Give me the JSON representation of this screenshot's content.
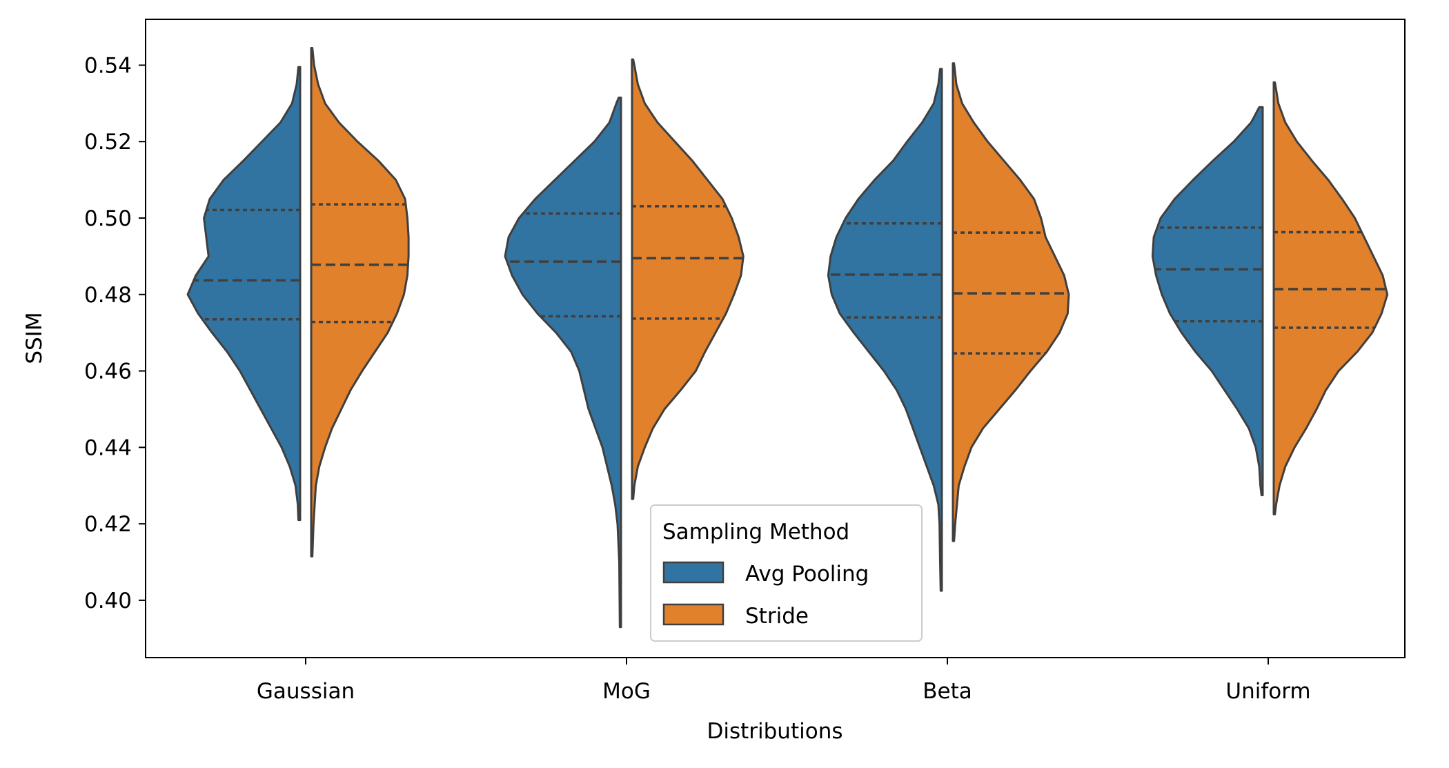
{
  "chart_data": {
    "type": "violin",
    "split": true,
    "xlabel": "Distributions",
    "ylabel": "SSIM",
    "categories": [
      "Gaussian",
      "MoG",
      "Beta",
      "Uniform"
    ],
    "ylim": [
      0.385,
      0.552
    ],
    "yticks": [
      0.4,
      0.42,
      0.44,
      0.46,
      0.48,
      0.5,
      0.52,
      0.54
    ],
    "ytick_labels": [
      "0.40",
      "0.42",
      "0.44",
      "0.46",
      "0.48",
      "0.50",
      "0.52",
      "0.54"
    ],
    "grid": false,
    "legend": {
      "title": "Sampling Method",
      "placement": "lower-center",
      "entries": [
        "Avg Pooling",
        "Stride"
      ]
    },
    "series": [
      {
        "name": "Avg Pooling",
        "color": "#3274a1",
        "side": "left",
        "violins": [
          {
            "min": 0.421,
            "max": 0.5395,
            "q1": 0.4735,
            "median": 0.4837,
            "q3": 0.5021,
            "profile": [
              [
                0.421,
                0.015
              ],
              [
                0.425,
                0.02
              ],
              [
                0.43,
                0.04
              ],
              [
                0.435,
                0.09
              ],
              [
                0.44,
                0.16
              ],
              [
                0.445,
                0.25
              ],
              [
                0.45,
                0.34
              ],
              [
                0.455,
                0.43
              ],
              [
                0.46,
                0.52
              ],
              [
                0.465,
                0.63
              ],
              [
                0.47,
                0.76
              ],
              [
                0.475,
                0.88
              ],
              [
                0.48,
                0.97
              ],
              [
                0.485,
                0.9
              ],
              [
                0.49,
                0.79
              ],
              [
                0.495,
                0.81
              ],
              [
                0.5,
                0.83
              ],
              [
                0.505,
                0.78
              ],
              [
                0.51,
                0.66
              ],
              [
                0.515,
                0.49
              ],
              [
                0.52,
                0.33
              ],
              [
                0.525,
                0.17
              ],
              [
                0.53,
                0.07
              ],
              [
                0.535,
                0.03
              ],
              [
                0.5395,
                0.015
              ]
            ]
          },
          {
            "min": 0.393,
            "max": 0.5315,
            "q1": 0.4743,
            "median": 0.4886,
            "q3": 0.5012,
            "profile": [
              [
                0.393,
                0.01
              ],
              [
                0.4,
                0.012
              ],
              [
                0.41,
                0.015
              ],
              [
                0.42,
                0.03
              ],
              [
                0.425,
                0.05
              ],
              [
                0.43,
                0.08
              ],
              [
                0.435,
                0.12
              ],
              [
                0.44,
                0.16
              ],
              [
                0.445,
                0.22
              ],
              [
                0.45,
                0.28
              ],
              [
                0.455,
                0.32
              ],
              [
                0.46,
                0.36
              ],
              [
                0.465,
                0.43
              ],
              [
                0.47,
                0.56
              ],
              [
                0.475,
                0.72
              ],
              [
                0.48,
                0.85
              ],
              [
                0.485,
                0.94
              ],
              [
                0.49,
                1.0
              ],
              [
                0.495,
                0.97
              ],
              [
                0.5,
                0.88
              ],
              [
                0.505,
                0.74
              ],
              [
                0.51,
                0.57
              ],
              [
                0.515,
                0.4
              ],
              [
                0.52,
                0.23
              ],
              [
                0.525,
                0.1
              ],
              [
                0.53,
                0.04
              ],
              [
                0.5315,
                0.02
              ]
            ]
          },
          {
            "min": 0.4025,
            "max": 0.539,
            "q1": 0.474,
            "median": 0.4852,
            "q3": 0.4986,
            "profile": [
              [
                0.4025,
                0.01
              ],
              [
                0.41,
                0.015
              ],
              [
                0.42,
                0.02
              ],
              [
                0.425,
                0.03
              ],
              [
                0.43,
                0.07
              ],
              [
                0.435,
                0.13
              ],
              [
                0.44,
                0.19
              ],
              [
                0.445,
                0.25
              ],
              [
                0.45,
                0.31
              ],
              [
                0.455,
                0.39
              ],
              [
                0.46,
                0.5
              ],
              [
                0.465,
                0.63
              ],
              [
                0.47,
                0.76
              ],
              [
                0.475,
                0.88
              ],
              [
                0.48,
                0.95
              ],
              [
                0.485,
                0.98
              ],
              [
                0.49,
                0.96
              ],
              [
                0.495,
                0.91
              ],
              [
                0.5,
                0.83
              ],
              [
                0.505,
                0.72
              ],
              [
                0.51,
                0.58
              ],
              [
                0.515,
                0.42
              ],
              [
                0.52,
                0.3
              ],
              [
                0.525,
                0.17
              ],
              [
                0.53,
                0.07
              ],
              [
                0.535,
                0.03
              ],
              [
                0.539,
                0.015
              ]
            ]
          },
          {
            "min": 0.4275,
            "max": 0.529,
            "q1": 0.473,
            "median": 0.4866,
            "q3": 0.4975,
            "profile": [
              [
                0.4275,
                0.01
              ],
              [
                0.43,
                0.02
              ],
              [
                0.435,
                0.03
              ],
              [
                0.44,
                0.06
              ],
              [
                0.445,
                0.12
              ],
              [
                0.45,
                0.22
              ],
              [
                0.455,
                0.33
              ],
              [
                0.46,
                0.44
              ],
              [
                0.465,
                0.58
              ],
              [
                0.47,
                0.7
              ],
              [
                0.475,
                0.8
              ],
              [
                0.48,
                0.87
              ],
              [
                0.485,
                0.92
              ],
              [
                0.49,
                0.95
              ],
              [
                0.495,
                0.94
              ],
              [
                0.5,
                0.88
              ],
              [
                0.505,
                0.76
              ],
              [
                0.51,
                0.6
              ],
              [
                0.515,
                0.43
              ],
              [
                0.52,
                0.25
              ],
              [
                0.525,
                0.1
              ],
              [
                0.529,
                0.03
              ]
            ]
          }
        ]
      },
      {
        "name": "Stride",
        "color": "#e1812c",
        "side": "right",
        "violins": [
          {
            "min": 0.4115,
            "max": 0.5445,
            "q1": 0.4728,
            "median": 0.4878,
            "q3": 0.5036,
            "profile": [
              [
                0.4115,
                0.01
              ],
              [
                0.42,
                0.02
              ],
              [
                0.43,
                0.04
              ],
              [
                0.435,
                0.07
              ],
              [
                0.44,
                0.12
              ],
              [
                0.445,
                0.18
              ],
              [
                0.45,
                0.26
              ],
              [
                0.455,
                0.34
              ],
              [
                0.46,
                0.44
              ],
              [
                0.465,
                0.55
              ],
              [
                0.47,
                0.66
              ],
              [
                0.475,
                0.74
              ],
              [
                0.48,
                0.8
              ],
              [
                0.485,
                0.83
              ],
              [
                0.49,
                0.84
              ],
              [
                0.495,
                0.84
              ],
              [
                0.5,
                0.83
              ],
              [
                0.505,
                0.81
              ],
              [
                0.51,
                0.73
              ],
              [
                0.515,
                0.58
              ],
              [
                0.52,
                0.4
              ],
              [
                0.525,
                0.24
              ],
              [
                0.53,
                0.12
              ],
              [
                0.535,
                0.06
              ],
              [
                0.54,
                0.025
              ],
              [
                0.5445,
                0.01
              ]
            ]
          },
          {
            "min": 0.4265,
            "max": 0.5415,
            "q1": 0.4737,
            "median": 0.4895,
            "q3": 0.5031,
            "profile": [
              [
                0.4265,
                0.01
              ],
              [
                0.43,
                0.02
              ],
              [
                0.435,
                0.05
              ],
              [
                0.44,
                0.11
              ],
              [
                0.445,
                0.18
              ],
              [
                0.45,
                0.28
              ],
              [
                0.455,
                0.42
              ],
              [
                0.46,
                0.55
              ],
              [
                0.465,
                0.63
              ],
              [
                0.47,
                0.72
              ],
              [
                0.475,
                0.81
              ],
              [
                0.48,
                0.88
              ],
              [
                0.485,
                0.94
              ],
              [
                0.49,
                0.96
              ],
              [
                0.495,
                0.92
              ],
              [
                0.5,
                0.86
              ],
              [
                0.505,
                0.78
              ],
              [
                0.51,
                0.65
              ],
              [
                0.515,
                0.52
              ],
              [
                0.52,
                0.37
              ],
              [
                0.525,
                0.22
              ],
              [
                0.53,
                0.11
              ],
              [
                0.535,
                0.05
              ],
              [
                0.54,
                0.02
              ],
              [
                0.5415,
                0.01
              ]
            ]
          },
          {
            "min": 0.4155,
            "max": 0.5405,
            "q1": 0.4646,
            "median": 0.4803,
            "q3": 0.4962,
            "profile": [
              [
                0.4155,
                0.01
              ],
              [
                0.42,
                0.02
              ],
              [
                0.43,
                0.05
              ],
              [
                0.435,
                0.1
              ],
              [
                0.44,
                0.16
              ],
              [
                0.445,
                0.26
              ],
              [
                0.45,
                0.4
              ],
              [
                0.455,
                0.54
              ],
              [
                0.46,
                0.67
              ],
              [
                0.465,
                0.81
              ],
              [
                0.47,
                0.92
              ],
              [
                0.475,
                0.99
              ],
              [
                0.48,
                1.0
              ],
              [
                0.485,
                0.96
              ],
              [
                0.49,
                0.88
              ],
              [
                0.495,
                0.8
              ],
              [
                0.5,
                0.76
              ],
              [
                0.505,
                0.7
              ],
              [
                0.51,
                0.58
              ],
              [
                0.515,
                0.44
              ],
              [
                0.52,
                0.3
              ],
              [
                0.525,
                0.18
              ],
              [
                0.53,
                0.08
              ],
              [
                0.535,
                0.03
              ],
              [
                0.5405,
                0.01
              ]
            ]
          },
          {
            "min": 0.4225,
            "max": 0.5355,
            "q1": 0.4713,
            "median": 0.4814,
            "q3": 0.4963,
            "profile": [
              [
                0.4225,
                0.01
              ],
              [
                0.425,
                0.02
              ],
              [
                0.43,
                0.05
              ],
              [
                0.435,
                0.1
              ],
              [
                0.44,
                0.18
              ],
              [
                0.445,
                0.28
              ],
              [
                0.45,
                0.37
              ],
              [
                0.455,
                0.45
              ],
              [
                0.46,
                0.56
              ],
              [
                0.465,
                0.72
              ],
              [
                0.47,
                0.85
              ],
              [
                0.475,
                0.93
              ],
              [
                0.48,
                0.98
              ],
              [
                0.485,
                0.94
              ],
              [
                0.49,
                0.86
              ],
              [
                0.495,
                0.78
              ],
              [
                0.5,
                0.7
              ],
              [
                0.505,
                0.59
              ],
              [
                0.51,
                0.47
              ],
              [
                0.515,
                0.33
              ],
              [
                0.52,
                0.2
              ],
              [
                0.525,
                0.1
              ],
              [
                0.53,
                0.04
              ],
              [
                0.5355,
                0.01
              ]
            ]
          }
        ]
      }
    ]
  }
}
